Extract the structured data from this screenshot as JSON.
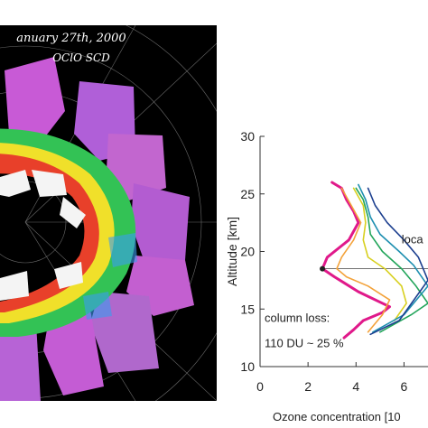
{
  "map": {
    "title": "anuary 27th, 2000",
    "subtitle": "OClO SCD"
  },
  "chart_data": {
    "type": "line",
    "xlabel": "Ozone concentration [10",
    "ylabel": "Altitude [km]",
    "xlim": [
      0,
      7
    ],
    "ylim": [
      10,
      30
    ],
    "xticks": [
      "0",
      "2",
      "4",
      "6"
    ],
    "yticks": [
      "10",
      "15",
      "20",
      "25",
      "30"
    ],
    "grid": false,
    "annotations": {
      "local_label": "loca",
      "column_loss_line1": "column loss:",
      "column_loss_line2": "110 DU ~ 25 %"
    },
    "reference_altitude_km": 18.5,
    "series": [
      {
        "color": "#e0198a",
        "x": [
          3.5,
          3.9,
          4.3,
          5.1,
          5.4,
          4.1,
          3.1,
          2.6,
          2.8,
          3.7,
          4.1,
          3.9,
          3.6,
          3.4,
          3.0
        ],
        "y": [
          12.5,
          13.2,
          14.0,
          14.7,
          15.2,
          16.5,
          17.8,
          18.5,
          19.5,
          21.0,
          22.5,
          23.5,
          24.5,
          25.5,
          26.0
        ]
      },
      {
        "color": "#f3a23a",
        "x": [
          4.5,
          5.1,
          5.4,
          4.5,
          3.6,
          3.2,
          3.4,
          3.9,
          4.2,
          3.8,
          3.4
        ],
        "y": [
          13.0,
          14.5,
          15.8,
          17.0,
          17.8,
          18.5,
          19.5,
          21.0,
          22.5,
          24.0,
          25.5
        ]
      },
      {
        "color": "#d8d020",
        "x": [
          5.6,
          6.1,
          5.9,
          5.2,
          4.5,
          4.3,
          4.4,
          4.3,
          3.9
        ],
        "y": [
          14.0,
          15.5,
          17.0,
          18.5,
          19.5,
          21.0,
          22.5,
          24.0,
          25.5
        ]
      },
      {
        "color": "#22a55a",
        "x": [
          5.0,
          6.3,
          7.0,
          6.5,
          5.9,
          5.1,
          4.6,
          4.5,
          4.3,
          4.0
        ],
        "y": [
          13.0,
          14.5,
          15.5,
          17.0,
          18.5,
          20.0,
          21.5,
          23.0,
          24.5,
          25.5
        ]
      },
      {
        "color": "#1e8fb0",
        "x": [
          4.7,
          6.0,
          7.0,
          6.4,
          5.8,
          5.0,
          4.6,
          4.4,
          4.1
        ],
        "y": [
          13.0,
          14.5,
          17.0,
          18.8,
          20.0,
          21.5,
          23.0,
          24.5,
          25.8
        ]
      },
      {
        "color": "#1c3f8f",
        "x": [
          4.6,
          5.8,
          7.0,
          6.6,
          6.0,
          5.3,
          4.8,
          4.5
        ],
        "y": [
          12.8,
          14.0,
          17.5,
          19.5,
          21.0,
          22.5,
          24.0,
          25.5
        ]
      }
    ]
  }
}
